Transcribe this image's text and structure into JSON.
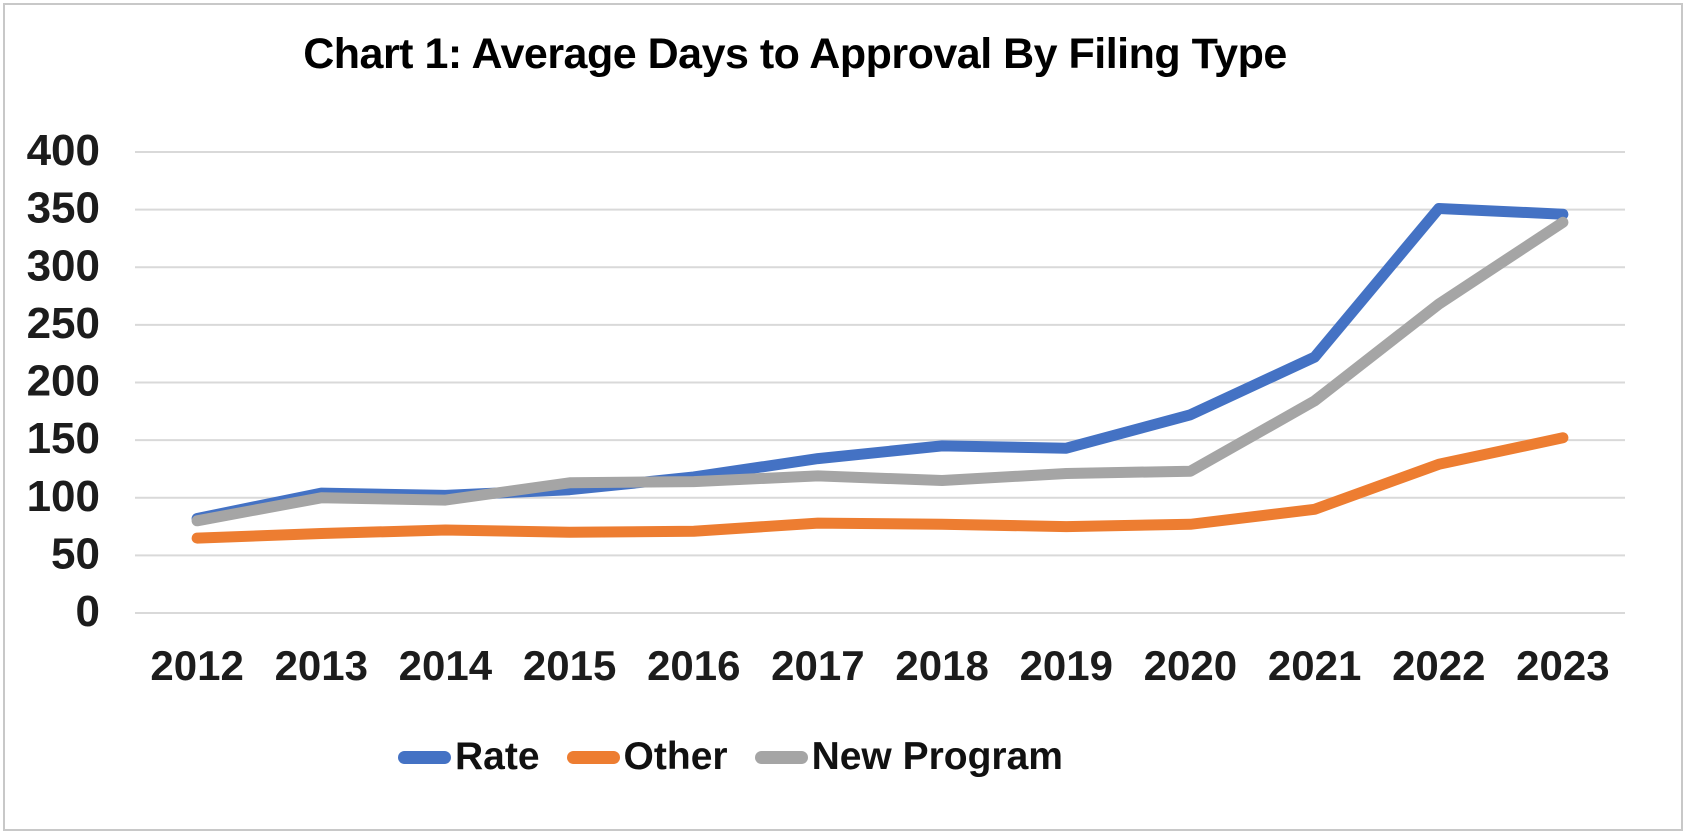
{
  "chart_data": {
    "type": "line",
    "title": "Chart 1: Average Days to Approval By Filing Type",
    "categories": [
      "2012",
      "2013",
      "2014",
      "2015",
      "2016",
      "2017",
      "2018",
      "2019",
      "2020",
      "2021",
      "2022",
      "2023"
    ],
    "series": [
      {
        "name": "Rate",
        "color": "#4472C4",
        "values": [
          82,
          104,
          102,
          107,
          118,
          134,
          145,
          143,
          172,
          222,
          351,
          346
        ]
      },
      {
        "name": "Other",
        "color": "#ED7D31",
        "values": [
          65,
          69,
          72,
          70,
          71,
          78,
          77,
          75,
          77,
          90,
          129,
          152
        ]
      },
      {
        "name": "New Program",
        "color": "#A5A5A5",
        "values": [
          80,
          100,
          98,
          113,
          114,
          119,
          115,
          121,
          123,
          184,
          268,
          339
        ]
      }
    ],
    "xlabel": "",
    "ylabel": "",
    "ylim": [
      0,
      400
    ],
    "y_ticks": [
      400,
      350,
      300,
      250,
      200,
      150,
      100,
      50,
      0
    ],
    "grid": true,
    "legend_position": "bottom",
    "series_draw_order_note": "gray drawn last on top of blue"
  },
  "colors": {
    "gridline": "#D9D9D9",
    "tick_text": "#1C1C1C",
    "title_text": "#000000",
    "frame_border": "#C8C8C8",
    "background": "#FFFFFF"
  }
}
